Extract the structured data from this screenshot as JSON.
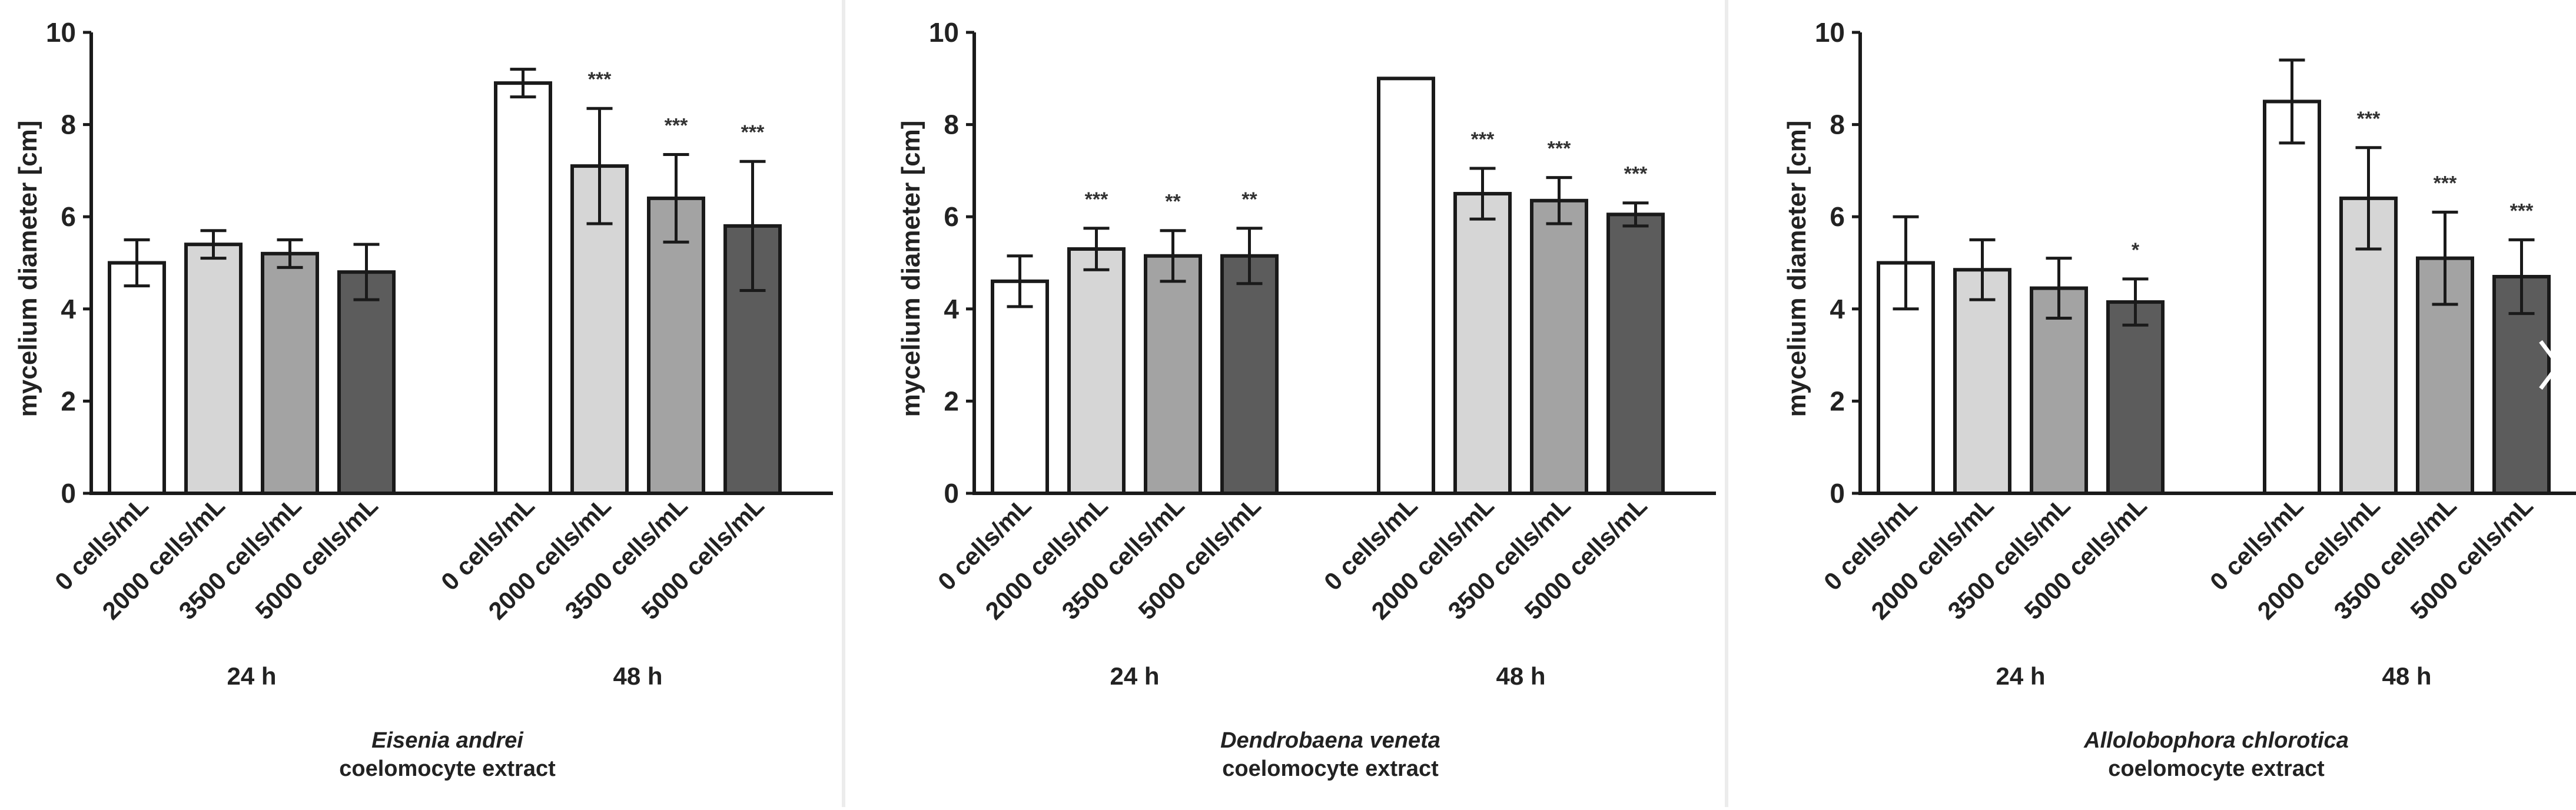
{
  "colors": {
    "bar_fills": [
      "#ffffff",
      "#d6d6d6",
      "#a3a3a3",
      "#5c5c5c"
    ],
    "axis": "#1a1a1a",
    "panel_gap": "#e9e9e9"
  },
  "chart_data": [
    {
      "type": "bar",
      "panel_id": "eisenia",
      "caption_species": "Eisenia andrei",
      "caption_extract": "coelomocyte extract",
      "ylabel": "mycelium diameter [cm]",
      "ylim": [
        0,
        10
      ],
      "yticks": [
        "0",
        "2",
        "4",
        "6",
        "8",
        "10"
      ],
      "categories": [
        "0 cells/mL",
        "2000 cells/mL",
        "3500 cells/mL",
        "5000 cells/mL"
      ],
      "groups": [
        {
          "label": "24 h",
          "values": [
            5.0,
            5.4,
            5.2,
            4.8
          ],
          "errors": [
            0.5,
            0.3,
            0.3,
            0.6
          ],
          "significance": [
            "",
            "",
            "",
            ""
          ]
        },
        {
          "label": "48 h",
          "values": [
            8.9,
            7.1,
            6.4,
            5.8
          ],
          "errors": [
            0.3,
            1.25,
            0.95,
            1.4
          ],
          "significance": [
            "",
            "***",
            "***",
            "***"
          ]
        }
      ]
    },
    {
      "type": "bar",
      "panel_id": "dendrobaena",
      "caption_species": "Dendrobaena veneta",
      "caption_extract": "coelomocyte extract",
      "ylabel": "mycelium diameter [cm]",
      "ylim": [
        0,
        10
      ],
      "yticks": [
        "0",
        "2",
        "4",
        "6",
        "8",
        "10"
      ],
      "categories": [
        "0 cells/mL",
        "2000 cells/mL",
        "3500 cells/mL",
        "5000 cells/mL"
      ],
      "groups": [
        {
          "label": "24 h",
          "values": [
            4.6,
            5.3,
            5.15,
            5.15
          ],
          "errors": [
            0.55,
            0.45,
            0.55,
            0.6
          ],
          "significance": [
            "",
            "***",
            "**",
            "**"
          ]
        },
        {
          "label": "48 h",
          "values": [
            9.0,
            6.5,
            6.35,
            6.05
          ],
          "errors": [
            0.0,
            0.55,
            0.5,
            0.25
          ],
          "significance": [
            "",
            "***",
            "***",
            "***"
          ]
        }
      ]
    },
    {
      "type": "bar",
      "panel_id": "allolobophora",
      "caption_species": "Allolobophora chlorotica",
      "caption_extract": "coelomocyte extract",
      "ylabel": "mycelium diameter [cm]",
      "ylim": [
        0,
        10
      ],
      "yticks": [
        "0",
        "2",
        "4",
        "6",
        "8",
        "10"
      ],
      "categories": [
        "0 cells/mL",
        "2000 cells/mL",
        "3500 cells/mL",
        "5000 cells/mL"
      ],
      "groups": [
        {
          "label": "24 h",
          "values": [
            5.0,
            4.85,
            4.45,
            4.15
          ],
          "errors": [
            1.0,
            0.65,
            0.65,
            0.5
          ],
          "significance": [
            "",
            "",
            "",
            "*"
          ]
        },
        {
          "label": "48 h",
          "values": [
            8.5,
            6.4,
            5.1,
            4.7
          ],
          "errors": [
            0.9,
            1.1,
            1.0,
            0.8
          ],
          "significance": [
            "",
            "***",
            "***",
            "***"
          ]
        }
      ]
    }
  ]
}
